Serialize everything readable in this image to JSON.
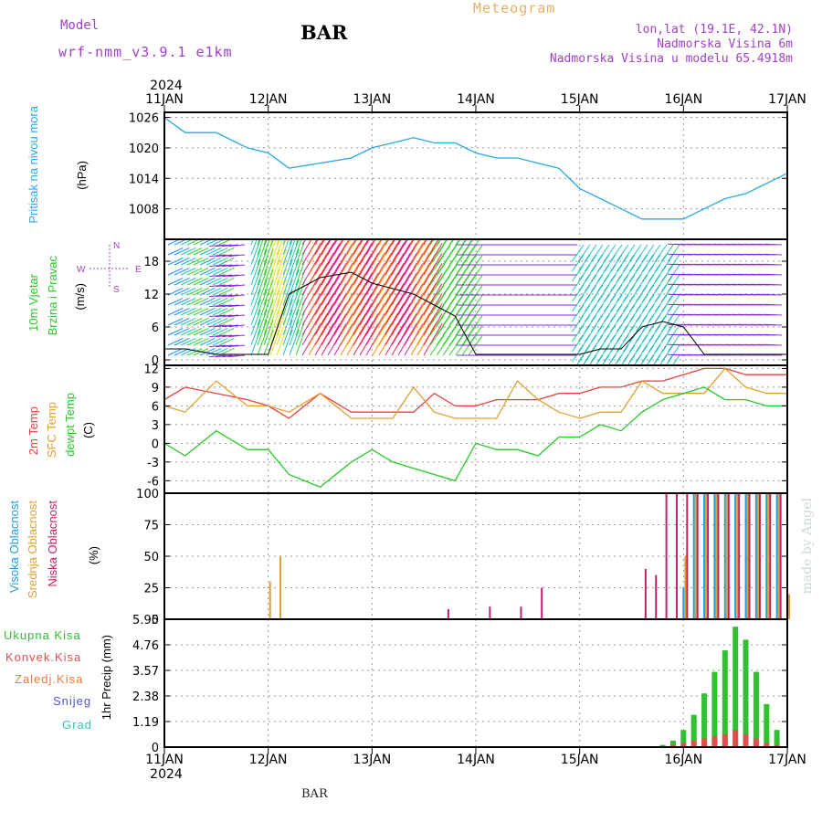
{
  "header": {
    "model_label": "Model",
    "model_name": "wrf-nmm_v3.9.1 e1km",
    "title": "Meteogram",
    "station": "BAR",
    "coords": "lon,lat (19.1E, 42.1N)",
    "elevation": "Nadmorska Visina 6m",
    "model_elevation": "Nadmorska Visina u modelu 65.4918m",
    "footer_station": "BAR",
    "credit": "made by Angel"
  },
  "colors": {
    "pressure": "#28a8e6",
    "temp2m": "#e84040",
    "sfc": "#e0a030",
    "dewpt": "#28c828",
    "high_cloud": "#20a0e0",
    "mid_cloud": "#e0a030",
    "low_cloud": "#c0206a",
    "total_precip": "#30c030",
    "conv_precip": "#e05050",
    "grid": "#999999",
    "label_purple": "#a040c8"
  },
  "icons": [
    "wind-compass-icon"
  ],
  "chart_data": [
    {
      "type": "line",
      "panel": "pressure",
      "year": "2024",
      "x_ticks": [
        "11JAN",
        "12JAN",
        "13JAN",
        "14JAN",
        "15JAN",
        "16JAN",
        "17JAN"
      ],
      "ylabel": [
        "Pritisak na nivou mora",
        "(hPa)"
      ],
      "yticks": [
        1008,
        1014,
        1020,
        1026
      ],
      "ylim": [
        1002,
        1027
      ],
      "grid": true,
      "series": [
        {
          "values": [
            [
              0,
              1026
            ],
            [
              0.2,
              1023
            ],
            [
              0.5,
              1023
            ],
            [
              0.8,
              1020
            ],
            [
              1.0,
              1019
            ],
            [
              1.2,
              1016
            ],
            [
              1.5,
              1017
            ],
            [
              1.8,
              1018
            ],
            [
              2.0,
              1020
            ],
            [
              2.2,
              1021
            ],
            [
              2.4,
              1022
            ],
            [
              2.6,
              1021
            ],
            [
              2.8,
              1021
            ],
            [
              3.0,
              1019
            ],
            [
              3.2,
              1018
            ],
            [
              3.4,
              1018
            ],
            [
              3.6,
              1017
            ],
            [
              3.8,
              1016
            ],
            [
              4.0,
              1012
            ],
            [
              4.2,
              1010
            ],
            [
              4.4,
              1008
            ],
            [
              4.6,
              1006
            ],
            [
              4.8,
              1006
            ],
            [
              5.0,
              1006
            ],
            [
              5.2,
              1008
            ],
            [
              5.4,
              1010
            ],
            [
              5.6,
              1011
            ],
            [
              5.8,
              1013
            ],
            [
              6.0,
              1015
            ]
          ]
        }
      ]
    },
    {
      "type": "line",
      "panel": "wind",
      "ylabel": [
        "10m Vjetar",
        "Brzina i Pravac",
        "(m/s)"
      ],
      "compass": {
        "n": "N",
        "s": "S",
        "e": "E",
        "w": "W"
      },
      "yticks": [
        0,
        6,
        12,
        18
      ],
      "ylim": [
        -1,
        22
      ],
      "grid": true,
      "series": [
        {
          "values": [
            [
              0,
              2
            ],
            [
              0.2,
              2
            ],
            [
              0.5,
              1
            ],
            [
              0.8,
              1
            ],
            [
              1.0,
              1
            ],
            [
              1.2,
              12
            ],
            [
              1.5,
              15
            ],
            [
              1.8,
              16
            ],
            [
              2.0,
              14
            ],
            [
              2.2,
              13
            ],
            [
              2.4,
              12
            ],
            [
              2.6,
              10
            ],
            [
              2.8,
              8
            ],
            [
              3.0,
              1
            ],
            [
              3.2,
              1
            ],
            [
              3.4,
              1
            ],
            [
              3.6,
              1
            ],
            [
              3.8,
              1
            ],
            [
              4.0,
              1
            ],
            [
              4.2,
              2
            ],
            [
              4.4,
              2
            ],
            [
              4.6,
              6
            ],
            [
              4.8,
              7
            ],
            [
              5.0,
              6
            ],
            [
              5.2,
              1
            ],
            [
              5.4,
              1
            ],
            [
              5.6,
              1
            ],
            [
              5.8,
              1
            ],
            [
              6.0,
              1
            ]
          ]
        }
      ]
    },
    {
      "type": "line",
      "panel": "temperature",
      "ylabel": [
        "2m Temp",
        "SFC Temp",
        "dewpt Temp",
        "(C)"
      ],
      "yticks": [
        -6,
        -3,
        0,
        3,
        6,
        9,
        12
      ],
      "ylim": [
        -8,
        12.5
      ],
      "grid": true,
      "series": [
        {
          "name": "2m Temp",
          "values": [
            [
              0,
              7
            ],
            [
              0.2,
              9
            ],
            [
              0.5,
              8
            ],
            [
              0.8,
              7
            ],
            [
              1.0,
              6
            ],
            [
              1.2,
              4
            ],
            [
              1.5,
              8
            ],
            [
              1.8,
              5
            ],
            [
              2.0,
              5
            ],
            [
              2.2,
              5
            ],
            [
              2.4,
              5
            ],
            [
              2.6,
              8
            ],
            [
              2.8,
              6
            ],
            [
              3.0,
              6
            ],
            [
              3.2,
              7
            ],
            [
              3.4,
              7
            ],
            [
              3.6,
              7
            ],
            [
              3.8,
              8
            ],
            [
              4.0,
              8
            ],
            [
              4.2,
              9
            ],
            [
              4.4,
              9
            ],
            [
              4.6,
              10
            ],
            [
              4.8,
              10
            ],
            [
              5.0,
              11
            ],
            [
              5.2,
              12
            ],
            [
              5.4,
              12
            ],
            [
              5.6,
              11
            ],
            [
              5.8,
              11
            ],
            [
              6.0,
              11
            ]
          ]
        },
        {
          "name": "SFC Temp",
          "values": [
            [
              0,
              6
            ],
            [
              0.2,
              5
            ],
            [
              0.5,
              10
            ],
            [
              0.8,
              6
            ],
            [
              1.0,
              6
            ],
            [
              1.2,
              5
            ],
            [
              1.5,
              8
            ],
            [
              1.8,
              4
            ],
            [
              2.0,
              4
            ],
            [
              2.2,
              4
            ],
            [
              2.4,
              9
            ],
            [
              2.6,
              5
            ],
            [
              2.8,
              4
            ],
            [
              3.0,
              4
            ],
            [
              3.2,
              4
            ],
            [
              3.4,
              10
            ],
            [
              3.6,
              7
            ],
            [
              3.8,
              5
            ],
            [
              4.0,
              4
            ],
            [
              4.2,
              5
            ],
            [
              4.4,
              5
            ],
            [
              4.6,
              10
            ],
            [
              4.8,
              8
            ],
            [
              5.0,
              8
            ],
            [
              5.2,
              8
            ],
            [
              5.4,
              12
            ],
            [
              5.6,
              9
            ],
            [
              5.8,
              8
            ],
            [
              6.0,
              8
            ]
          ]
        },
        {
          "name": "dewpt Temp",
          "values": [
            [
              0,
              0
            ],
            [
              0.2,
              -2
            ],
            [
              0.5,
              2
            ],
            [
              0.8,
              -1
            ],
            [
              1.0,
              -1
            ],
            [
              1.2,
              -5
            ],
            [
              1.5,
              -7
            ],
            [
              1.8,
              -3
            ],
            [
              2.0,
              -1
            ],
            [
              2.2,
              -3
            ],
            [
              2.4,
              -4
            ],
            [
              2.6,
              -5
            ],
            [
              2.8,
              -6
            ],
            [
              3.0,
              0
            ],
            [
              3.2,
              -1
            ],
            [
              3.4,
              -1
            ],
            [
              3.6,
              -2
            ],
            [
              3.8,
              1
            ],
            [
              4.0,
              1
            ],
            [
              4.2,
              3
            ],
            [
              4.4,
              2
            ],
            [
              4.6,
              5
            ],
            [
              4.8,
              7
            ],
            [
              5.0,
              8
            ],
            [
              5.2,
              9
            ],
            [
              5.4,
              7
            ],
            [
              5.6,
              7
            ],
            [
              5.8,
              6
            ],
            [
              6.0,
              6
            ]
          ]
        }
      ]
    },
    {
      "type": "bar",
      "panel": "cloud",
      "ylabel": [
        "Visoka Oblacnost",
        "Srednja Oblacnost",
        "Niska Oblacnost",
        "(%)"
      ],
      "yticks": [
        0,
        25,
        50,
        75,
        100
      ],
      "ylim": [
        0,
        100
      ],
      "grid": true,
      "series": [
        {
          "name": "Visoka Oblacnost",
          "values": [
            [
              5.0,
              25
            ],
            [
              5.1,
              100
            ],
            [
              5.2,
              100
            ],
            [
              5.3,
              100
            ],
            [
              5.4,
              100
            ],
            [
              5.5,
              100
            ],
            [
              5.6,
              100
            ],
            [
              5.7,
              100
            ],
            [
              5.8,
              100
            ],
            [
              5.9,
              100
            ]
          ]
        },
        {
          "name": "Srednja Oblacnost",
          "values": [
            [
              1.0,
              30
            ],
            [
              1.1,
              50
            ],
            [
              5.0,
              50
            ],
            [
              5.1,
              100
            ],
            [
              5.2,
              100
            ],
            [
              5.3,
              100
            ],
            [
              5.4,
              100
            ],
            [
              5.5,
              100
            ],
            [
              5.6,
              100
            ],
            [
              5.7,
              100
            ],
            [
              5.8,
              100
            ],
            [
              5.9,
              100
            ],
            [
              6.0,
              20
            ]
          ]
        },
        {
          "name": "Niska Oblacnost",
          "values": [
            [
              2.7,
              8
            ],
            [
              3.1,
              10
            ],
            [
              3.4,
              10
            ],
            [
              3.6,
              25
            ],
            [
              4.6,
              40
            ],
            [
              4.7,
              35
            ],
            [
              4.8,
              100
            ],
            [
              4.9,
              100
            ],
            [
              5.0,
              100
            ],
            [
              5.1,
              100
            ],
            [
              5.2,
              100
            ],
            [
              5.3,
              100
            ],
            [
              5.4,
              100
            ],
            [
              5.5,
              100
            ],
            [
              5.6,
              100
            ],
            [
              5.7,
              100
            ],
            [
              5.8,
              100
            ],
            [
              5.9,
              100
            ]
          ]
        }
      ]
    },
    {
      "type": "bar",
      "panel": "precipitation",
      "ylabel": "1hr Precip (mm)",
      "legend": [
        "Ukupna Kisa",
        "Konvek.Kisa",
        "Zaledj.Kisa",
        "Snijeg",
        "Grad"
      ],
      "legend_colors": [
        "#30c030",
        "#e05050",
        "#f07838",
        "#5050e0",
        "#30c8b8"
      ],
      "yticks": [
        0,
        1.19,
        2.38,
        3.57,
        4.76,
        5.95
      ],
      "ylim": [
        0,
        5.95
      ],
      "grid": true,
      "x_ticks": [
        "11JAN",
        "12JAN",
        "13JAN",
        "14JAN",
        "15JAN",
        "16JAN",
        "17JAN"
      ],
      "year": "2024",
      "series": [
        {
          "name": "Ukupna Kisa",
          "values": [
            [
              4.8,
              0.1
            ],
            [
              4.9,
              0.3
            ],
            [
              5.0,
              0.8
            ],
            [
              5.1,
              1.5
            ],
            [
              5.2,
              2.5
            ],
            [
              5.3,
              3.5
            ],
            [
              5.4,
              4.5
            ],
            [
              5.5,
              5.6
            ],
            [
              5.6,
              5.0
            ],
            [
              5.7,
              3.5
            ],
            [
              5.8,
              2.0
            ],
            [
              5.9,
              0.8
            ]
          ]
        },
        {
          "name": "Konvek.Kisa",
          "values": [
            [
              4.8,
              0.05
            ],
            [
              4.9,
              0.1
            ],
            [
              5.0,
              0.2
            ],
            [
              5.1,
              0.3
            ],
            [
              5.2,
              0.4
            ],
            [
              5.3,
              0.5
            ],
            [
              5.4,
              0.6
            ],
            [
              5.5,
              0.8
            ],
            [
              5.6,
              0.6
            ],
            [
              5.7,
              0.4
            ],
            [
              5.8,
              0.2
            ],
            [
              5.9,
              0.1
            ]
          ]
        }
      ]
    }
  ]
}
